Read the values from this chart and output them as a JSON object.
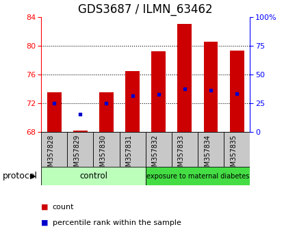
{
  "title": "GDS3687 / ILMN_63462",
  "samples": [
    "GSM357828",
    "GSM357829",
    "GSM357830",
    "GSM357831",
    "GSM357832",
    "GSM357833",
    "GSM357834",
    "GSM357835"
  ],
  "bar_bottom": 68,
  "bar_tops": [
    73.5,
    68.2,
    73.5,
    76.5,
    79.2,
    83.0,
    80.6,
    79.3
  ],
  "percentile_values": [
    72.0,
    70.5,
    72.0,
    73.0,
    73.2,
    74.0,
    73.8,
    73.3
  ],
  "ylim_left": [
    68,
    84
  ],
  "ylim_right": [
    0,
    100
  ],
  "yticks_left": [
    68,
    72,
    76,
    80,
    84
  ],
  "yticks_right": [
    0,
    25,
    50,
    75,
    100
  ],
  "yticklabels_right": [
    "0",
    "25",
    "50",
    "75",
    "100%"
  ],
  "bar_color": "#cc0000",
  "dot_color": "#0000cc",
  "bar_width": 0.55,
  "control_indices": [
    0,
    1,
    2,
    3
  ],
  "exposure_indices": [
    4,
    5,
    6,
    7
  ],
  "control_label": "control",
  "exposure_label": "exposure to maternal diabetes",
  "control_color": "#bbffbb",
  "exposure_color": "#44dd44",
  "protocol_label": "protocol",
  "legend_count_label": "count",
  "legend_percentile_label": "percentile rank within the sample",
  "title_fontsize": 12,
  "tick_fontsize": 8,
  "sample_fontsize": 7,
  "legend_fontsize": 8,
  "protocol_fontsize": 9
}
